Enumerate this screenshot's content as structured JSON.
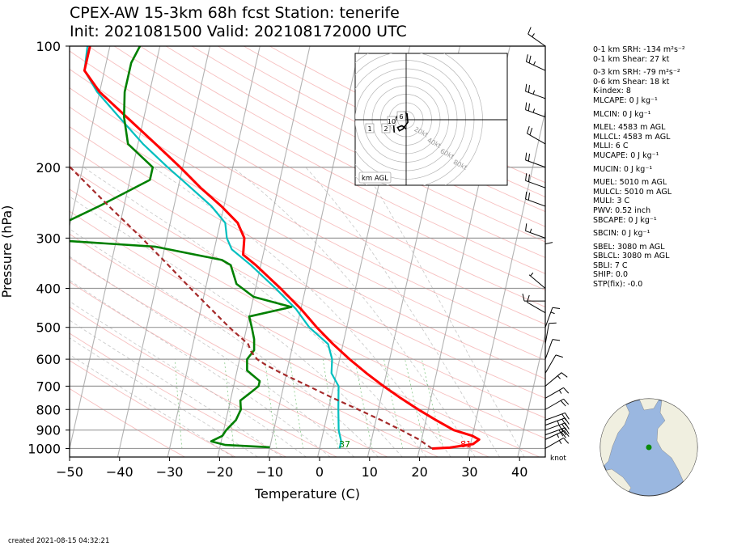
{
  "title_line1": "CPEX-AW 15-3km  68h fcst  Station: tenerife",
  "title_line2": "Init: 2021081500  Valid: 202108172000 UTC",
  "created": "created 2021-08-15 04:32:21",
  "barb_unit": "knot",
  "hodograph": {
    "label": "km AGL",
    "ring_labels": [
      "20kt",
      "40kt",
      "60kt",
      "80kt"
    ],
    "height_labels": [
      "1",
      "2",
      "6",
      "10"
    ]
  },
  "indices": [
    {
      "name": "0-1 km SRH",
      "value": "-134 m²s⁻²"
    },
    {
      "name": "0-1 km Shear",
      "value": "27 kt"
    },
    {
      "name": "0-3 km SRH",
      "value": "-79 m²s⁻²"
    },
    {
      "name": "0-6 km Shear",
      "value": "18 kt"
    },
    {
      "name": "K-index",
      "value": "8"
    },
    {
      "name": "MLCAPE",
      "value": "0 J kg⁻¹"
    },
    {
      "name": "MLCIN",
      "value": "0 J kg⁻¹"
    },
    {
      "name": "MLEL",
      "value": "4583 m AGL"
    },
    {
      "name": "MLLCL",
      "value": "4583 m AGL"
    },
    {
      "name": "MLLI",
      "value": "6 C"
    },
    {
      "name": "MUCAPE",
      "value": "0 J kg⁻¹"
    },
    {
      "name": "MUCIN",
      "value": "0 J kg⁻¹"
    },
    {
      "name": "MUEL",
      "value": "5010 m AGL"
    },
    {
      "name": "MULCL",
      "value": "5010 m AGL"
    },
    {
      "name": "MULI",
      "value": "3 C"
    },
    {
      "name": "PWV",
      "value": "0.52 inch"
    },
    {
      "name": "SBCAPE",
      "value": "0 J kg⁻¹"
    },
    {
      "name": "SBCIN",
      "value": "0 J kg⁻¹"
    },
    {
      "name": "SBEL",
      "value": "3080 m AGL"
    },
    {
      "name": "SBLCL",
      "value": "3080 m AGL"
    },
    {
      "name": "SBLI",
      "value": "7 C"
    },
    {
      "name": "SHIP",
      "value": "0.0"
    },
    {
      "name": "STP(fix)",
      "value": "-0.0"
    }
  ],
  "chart_data": {
    "type": "skew-t",
    "xlabel": "Temperature (C)",
    "ylabel": "Pressure (hPa)",
    "xlim": [
      -50,
      45
    ],
    "ylim": [
      1050,
      100
    ],
    "x_ticks": [
      -50,
      -40,
      -30,
      -20,
      -10,
      0,
      10,
      20,
      30,
      40
    ],
    "y_ticks": [
      100,
      200,
      300,
      400,
      500,
      600,
      700,
      800,
      900,
      1000
    ],
    "y_scale": "log",
    "grid": true,
    "temperature_color": "#ff0000",
    "dewpoint_color": "#008000",
    "virtual_temperature_color": "#00bfbf",
    "parcel_color": "#a52a2a",
    "surface_temperature_F": "81",
    "surface_dewpoint_F": "37",
    "series": [
      {
        "points": [
          [
            1000,
            22.5
          ],
          [
            995,
            26
          ],
          [
            975,
            30.5
          ],
          [
            950,
            31.5
          ],
          [
            930,
            30
          ],
          [
            900,
            26
          ],
          [
            850,
            22
          ],
          [
            800,
            18
          ],
          [
            750,
            14
          ],
          [
            700,
            10
          ],
          [
            650,
            6
          ],
          [
            600,
            2
          ],
          [
            550,
            -2
          ],
          [
            500,
            -6
          ],
          [
            450,
            -10
          ],
          [
            400,
            -15
          ],
          [
            350,
            -21
          ],
          [
            330,
            -24
          ],
          [
            300,
            -24.5
          ],
          [
            275,
            -26.5
          ],
          [
            250,
            -30.5
          ],
          [
            225,
            -35.5
          ],
          [
            200,
            -40.5
          ],
          [
            175,
            -46.5
          ],
          [
            150,
            -53.5
          ],
          [
            130,
            -60
          ],
          [
            115,
            -64
          ],
          [
            100,
            -64
          ]
        ]
      },
      {
        "points": [
          [
            993,
            -10
          ],
          [
            980,
            -19
          ],
          [
            960,
            -22
          ],
          [
            930,
            -20
          ],
          [
            900,
            -19.5
          ],
          [
            850,
            -18
          ],
          [
            800,
            -17.5
          ],
          [
            760,
            -18
          ],
          [
            720,
            -16
          ],
          [
            700,
            -15
          ],
          [
            680,
            -15
          ],
          [
            640,
            -18
          ],
          [
            600,
            -18.5
          ],
          [
            570,
            -17.5
          ],
          [
            535,
            -18
          ],
          [
            500,
            -19
          ],
          [
            470,
            -20
          ],
          [
            445,
            -12
          ],
          [
            420,
            -20
          ],
          [
            390,
            -24
          ],
          [
            350,
            -26
          ],
          [
            340,
            -28
          ],
          [
            315,
            -42
          ],
          [
            300,
            -69
          ],
          [
            270,
            -60
          ],
          [
            250,
            -55
          ],
          [
            215,
            -46
          ],
          [
            200,
            -46
          ],
          [
            175,
            -52
          ],
          [
            150,
            -54
          ],
          [
            130,
            -55
          ],
          [
            110,
            -55
          ],
          [
            100,
            -54
          ]
        ]
      },
      {
        "points": [
          [
            1000,
            4
          ],
          [
            960,
            4
          ],
          [
            900,
            3
          ],
          [
            800,
            2
          ],
          [
            700,
            1
          ],
          [
            650,
            -1
          ],
          [
            600,
            -1.5
          ],
          [
            550,
            -3
          ],
          [
            500,
            -7.5
          ],
          [
            450,
            -11
          ],
          [
            400,
            -16
          ],
          [
            350,
            -22
          ],
          [
            320,
            -26.5
          ],
          [
            300,
            -28
          ],
          [
            275,
            -29
          ],
          [
            250,
            -32.5
          ],
          [
            220,
            -38.5
          ],
          [
            200,
            -43
          ],
          [
            175,
            -49
          ],
          [
            150,
            -55
          ],
          [
            130,
            -60.5
          ],
          [
            115,
            -64
          ],
          [
            100,
            -64.5
          ]
        ]
      },
      {
        "points": [
          [
            1000,
            22.5
          ],
          [
            975,
            21
          ],
          [
            950,
            19.5
          ],
          [
            900,
            15.5
          ],
          [
            850,
            11
          ],
          [
            800,
            6
          ],
          [
            750,
            0.5
          ],
          [
            700,
            -5
          ],
          [
            650,
            -11
          ],
          [
            620,
            -14.5
          ],
          [
            600,
            -16.5
          ],
          [
            575,
            -18
          ],
          [
            550,
            -19
          ],
          [
            500,
            -23.5
          ],
          [
            450,
            -28
          ],
          [
            400,
            -33
          ],
          [
            350,
            -38.5
          ],
          [
            300,
            -45
          ],
          [
            250,
            -53
          ],
          [
            200,
            -62.5
          ],
          [
            150,
            -75
          ],
          [
            120,
            -85
          ]
        ]
      }
    ],
    "wind_barbs": [
      {
        "p": 1000,
        "spd": 15,
        "dir": 60
      },
      {
        "p": 950,
        "spd": 25,
        "dir": 65
      },
      {
        "p": 925,
        "spd": 30,
        "dir": 70
      },
      {
        "p": 900,
        "spd": 30,
        "dir": 70
      },
      {
        "p": 875,
        "spd": 25,
        "dir": 70
      },
      {
        "p": 850,
        "spd": 20,
        "dir": 70
      },
      {
        "p": 800,
        "spd": 20,
        "dir": 60
      },
      {
        "p": 750,
        "spd": 15,
        "dir": 60
      },
      {
        "p": 700,
        "spd": 15,
        "dir": 50
      },
      {
        "p": 650,
        "spd": 10,
        "dir": 30
      },
      {
        "p": 600,
        "spd": 10,
        "dir": 20
      },
      {
        "p": 550,
        "spd": 10,
        "dir": 10
      },
      {
        "p": 500,
        "spd": 15,
        "dir": 20
      },
      {
        "p": 460,
        "spd": 10,
        "dir": 300
      },
      {
        "p": 430,
        "spd": 10,
        "dir": 270
      },
      {
        "p": 400,
        "spd": 5,
        "dir": 310
      },
      {
        "p": 350,
        "spd": 10,
        "dir": 0
      },
      {
        "p": 300,
        "spd": 15,
        "dir": 290
      },
      {
        "p": 250,
        "spd": 20,
        "dir": 290
      },
      {
        "p": 225,
        "spd": 20,
        "dir": 290
      },
      {
        "p": 200,
        "spd": 20,
        "dir": 290
      },
      {
        "p": 175,
        "spd": 20,
        "dir": 300
      },
      {
        "p": 150,
        "spd": 25,
        "dir": 290
      },
      {
        "p": 135,
        "spd": 25,
        "dir": 290
      },
      {
        "p": 115,
        "spd": 25,
        "dir": 295
      },
      {
        "p": 100,
        "spd": 15,
        "dir": 305
      }
    ],
    "hodograph_points": [
      [
        -7,
        2
      ],
      [
        -7.5,
        8
      ],
      [
        -5,
        12
      ],
      [
        -1.5,
        14
      ],
      [
        0.5,
        13
      ],
      [
        1,
        8
      ],
      [
        -2,
        4
      ],
      [
        -4,
        3
      ],
      [
        -5,
        5
      ],
      [
        -2.5,
        6
      ],
      [
        -1,
        5
      ],
      [
        0,
        4
      ]
    ]
  }
}
